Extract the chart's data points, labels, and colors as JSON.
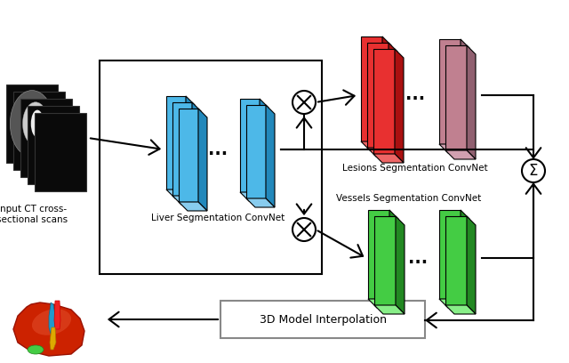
{
  "bg_color": "#ffffff",
  "ct_label": "Input CT cross-\nsectional scans",
  "liver_label": "Liver Segmentation ConvNet",
  "lesion_label": "Lesions Segmentation ConvNet",
  "vessel_label": "Vessels Segmentation ConvNet",
  "interp_label": "3D Model Interpolation",
  "blue_face": "#4db8e8",
  "blue_side": "#2288bb",
  "blue_top": "#88ccee",
  "red_face": "#e83030",
  "red_side": "#aa1010",
  "red_top": "#ee6666",
  "mauve_face": "#c08090",
  "mauve_side": "#906070",
  "mauve_top": "#d0a0b0",
  "green_face": "#44cc44",
  "green_side": "#228822",
  "green_top": "#88ee88",
  "box_bg": "#ffffff",
  "box_edge": "#666666",
  "arrow_color": "#000000"
}
